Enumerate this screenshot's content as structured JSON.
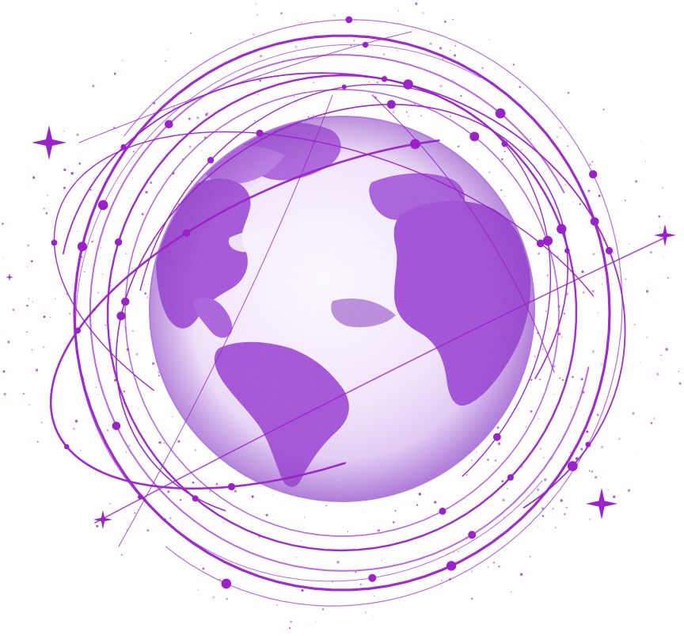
{
  "illustration": {
    "subject": "purple-globe-with-orbits",
    "icon": "globe-icon",
    "colors": {
      "background": "#ffffff",
      "orbit": "#9a22c9",
      "orbit_light": "#b24fe0",
      "land": "#9f4fd6",
      "land_dark": "#7d2cb8",
      "ocean": "#f4ecfb",
      "ocean_shade": "#e4d1f5",
      "star": "#9a22c9"
    }
  }
}
